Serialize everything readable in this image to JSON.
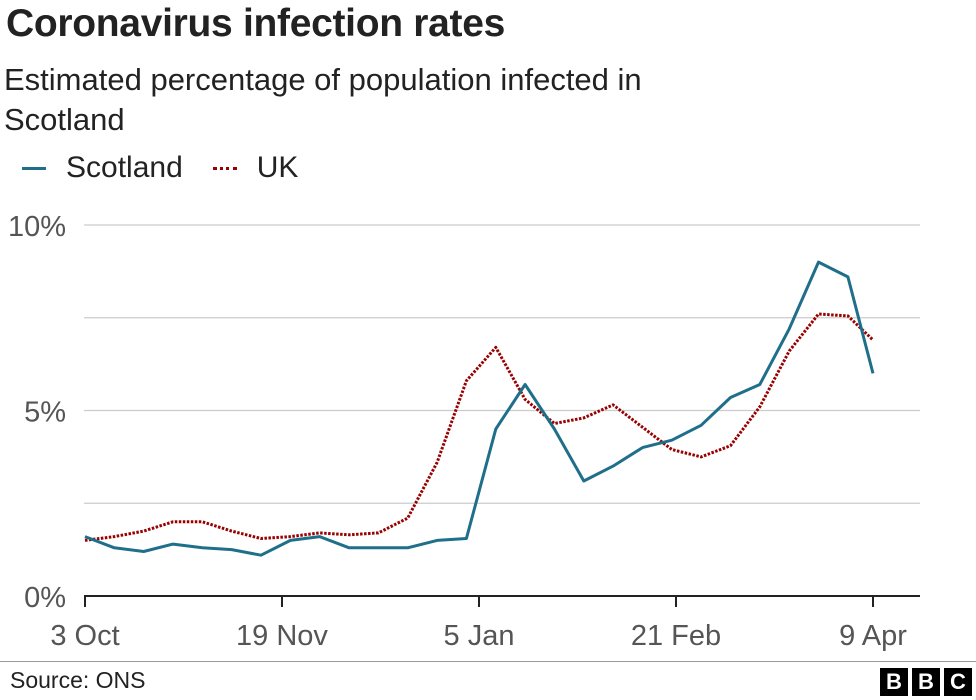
{
  "title": "Coronavirus infection rates",
  "subtitle": "Estimated percentage of population infected in Scotland",
  "source": "Source: ONS",
  "logo": [
    "B",
    "B",
    "C"
  ],
  "colors": {
    "scotland": "#1f6f8b",
    "uk": "#990000",
    "grid": "#cccccc",
    "axis": "#222222"
  },
  "chart_data": {
    "type": "line",
    "title": "Coronavirus infection rates",
    "subtitle": "Estimated percentage of population infected in Scotland",
    "xlabel": "",
    "ylabel": "",
    "x": [
      "2020-10-03",
      "2020-10-10",
      "2020-10-17",
      "2020-10-24",
      "2020-10-31",
      "2020-11-07",
      "2020-11-14",
      "2020-11-21",
      "2020-11-28",
      "2020-12-05",
      "2020-12-12",
      "2020-12-19",
      "2020-12-26",
      "2021-01-02",
      "2021-01-09",
      "2021-01-16",
      "2021-01-23",
      "2021-01-30",
      "2021-02-06",
      "2021-02-13",
      "2021-02-20",
      "2021-02-27",
      "2021-03-06",
      "2021-03-13",
      "2021-03-20",
      "2021-03-27",
      "2021-04-03",
      "2021-04-09"
    ],
    "x_ticks": [
      "3 Oct",
      "19 Nov",
      "5 Jan",
      "21 Feb",
      "9 Apr"
    ],
    "x_tick_dates": [
      "2020-10-03",
      "2020-11-19",
      "2021-01-05",
      "2021-02-21",
      "2021-04-09"
    ],
    "y_ticks": [
      "0%",
      "5%",
      "10%"
    ],
    "y_tick_values": [
      0,
      5,
      10
    ],
    "ylim": [
      0,
      10
    ],
    "grid": true,
    "legend": "top-left",
    "series": [
      {
        "name": "Scotland",
        "style": "solid",
        "values": [
          1.6,
          1.3,
          1.2,
          1.4,
          1.3,
          1.25,
          1.1,
          1.5,
          1.6,
          1.3,
          1.3,
          1.3,
          1.5,
          1.55,
          4.5,
          5.7,
          4.5,
          3.1,
          3.5,
          4.0,
          4.2,
          4.6,
          5.35,
          5.7,
          7.2,
          9.0,
          8.6,
          6.0
        ]
      },
      {
        "name": "UK",
        "style": "dotted",
        "values": [
          1.5,
          1.6,
          1.75,
          2.0,
          2.0,
          1.75,
          1.55,
          1.6,
          1.7,
          1.65,
          1.7,
          2.1,
          3.6,
          5.8,
          6.7,
          5.3,
          4.65,
          4.8,
          5.15,
          4.55,
          3.95,
          3.75,
          4.05,
          5.1,
          6.6,
          7.6,
          7.55,
          6.9
        ]
      }
    ]
  }
}
